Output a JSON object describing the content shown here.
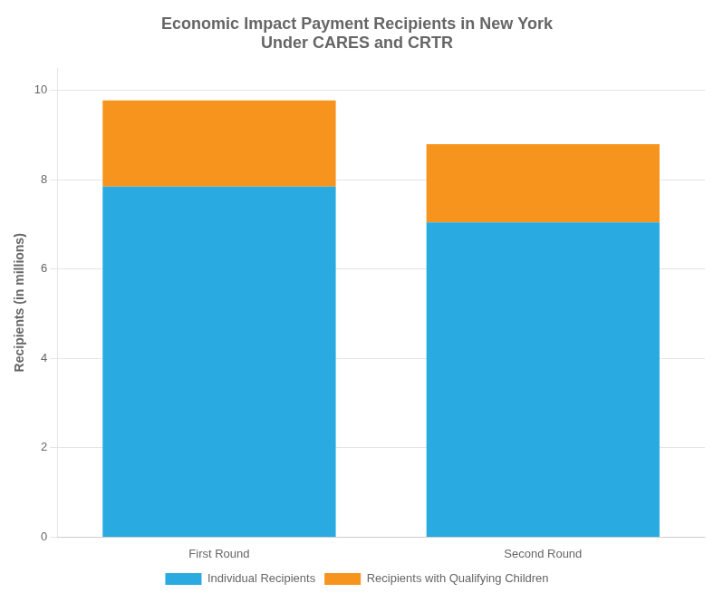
{
  "chart_data": {
    "type": "bar",
    "title": [
      "Economic Impact Payment Recipients in New York",
      "Under CARES and CRTR"
    ],
    "y_label": "Recipients (in millions)",
    "categories": [
      "First Round",
      "Second Round"
    ],
    "series": [
      {
        "name": "Individual Recipients",
        "color": "#29ABE2",
        "values": [
          7.85,
          7.05
        ]
      },
      {
        "name": "Recipients with Qualifying Children",
        "color": "#F7941D",
        "values": [
          1.93,
          1.75
        ]
      }
    ],
    "stacked": true,
    "ylim": [
      0,
      10.5
    ],
    "yticks": [
      0,
      2,
      4,
      6,
      8,
      10
    ],
    "grid": true,
    "legend": "bottom"
  }
}
